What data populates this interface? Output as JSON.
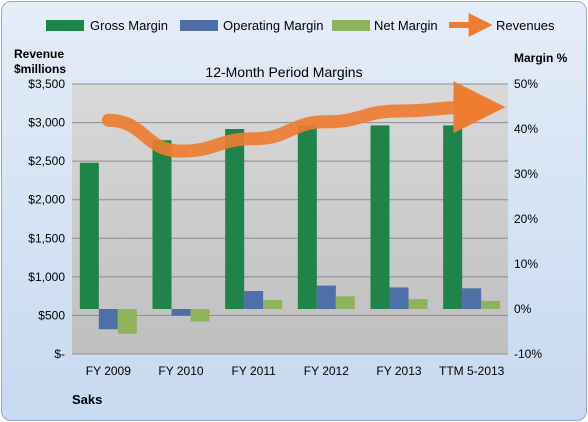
{
  "chart_data": {
    "type": "bar",
    "title": "12-Month Period Margins",
    "company": "Saks",
    "categories": [
      "FY 2009",
      "FY 2010",
      "FY 2011",
      "FY 2012",
      "FY 2013",
      "TTM 5-2013"
    ],
    "y_left_label_line1": "Revenue",
    "y_left_label_line2": "$millions",
    "y_right_label": "Margin %",
    "y_left_ticks": [
      "$-",
      "$500",
      "$1,000",
      "$1,500",
      "$2,000",
      "$2,500",
      "$3,000",
      "$3,500"
    ],
    "y_right_ticks": [
      "-10%",
      "0%",
      "10%",
      "20%",
      "30%",
      "40%",
      "50%"
    ],
    "ylim_left": [
      0,
      3500
    ],
    "ylim_right": [
      -10,
      50
    ],
    "grid": true,
    "legend_position": "top",
    "series": [
      {
        "name": "Gross Margin",
        "axis": "right",
        "kind": "bar",
        "color": "#1e8449",
        "values": [
          32.5,
          37.5,
          40,
          40.8,
          40.8,
          40.8
        ]
      },
      {
        "name": "Operating Margin",
        "axis": "right",
        "kind": "bar",
        "color": "#4f6fa8",
        "values": [
          -4.5,
          -1.5,
          4,
          5.2,
          4.8,
          4.6
        ]
      },
      {
        "name": "Net Margin",
        "axis": "right",
        "kind": "bar",
        "color": "#8fb35a",
        "values": [
          -5.5,
          -2.8,
          2,
          2.8,
          2.2,
          1.8
        ]
      },
      {
        "name": "Revenues",
        "axis": "left",
        "kind": "arrow",
        "color": "#ed7d31",
        "values": [
          3030,
          2630,
          2790,
          3010,
          3150,
          3200
        ]
      }
    ]
  }
}
